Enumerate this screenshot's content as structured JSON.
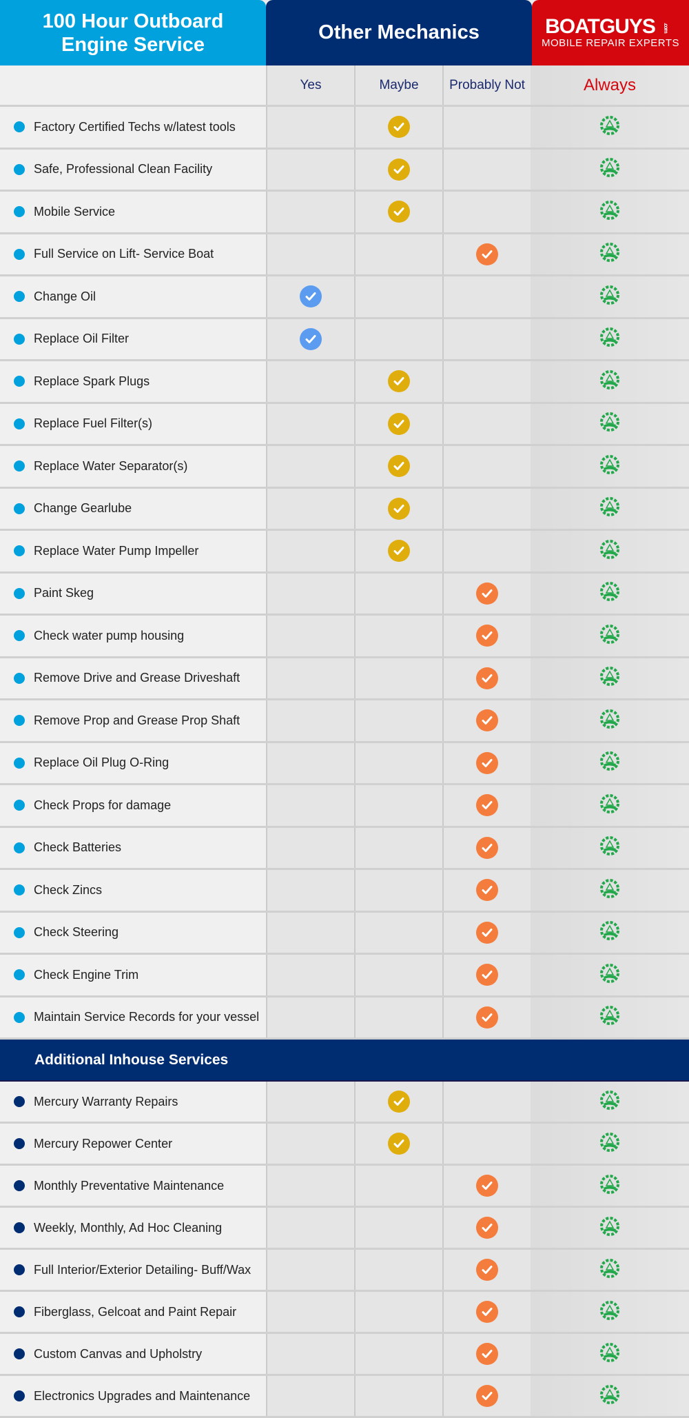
{
  "header": {
    "title": "100 Hour Outboard Engine Service",
    "title_line1": "100 Hour Outboard",
    "title_line2": "Engine Service",
    "other": "Other Mechanics",
    "brand": "BOATGUYS",
    "brand_suffix": ".com",
    "brand_tagline": "MOBILE REPAIR EXPERTS"
  },
  "columns": {
    "yes": "Yes",
    "maybe": "Maybe",
    "not": "Probably Not",
    "always": "Always"
  },
  "colors": {
    "cyan": "#00a1dd",
    "navy": "#002d72",
    "red": "#d4070f",
    "yes": "#5b9cf0",
    "maybe": "#e0ae0c",
    "not": "#f47c3c",
    "always": "#22a84a"
  },
  "section1": [
    {
      "label": "Factory Certified Techs w/latest tools",
      "status": "maybe"
    },
    {
      "label": "Safe, Professional Clean Facility",
      "status": "maybe"
    },
    {
      "label": "Mobile Service",
      "status": "maybe"
    },
    {
      "label": "Full Service on Lift- Service Boat",
      "status": "not"
    },
    {
      "label": "Change Oil",
      "status": "yes"
    },
    {
      "label": "Replace Oil Filter",
      "status": "yes"
    },
    {
      "label": "Replace Spark Plugs",
      "status": "maybe"
    },
    {
      "label": "Replace Fuel Filter(s)",
      "status": "maybe"
    },
    {
      "label": "Replace Water Separator(s)",
      "status": "maybe"
    },
    {
      "label": "Change Gearlube",
      "status": "maybe"
    },
    {
      "label": "Replace Water Pump  Impeller",
      "status": "maybe"
    },
    {
      "label": "Paint Skeg",
      "status": "not"
    },
    {
      "label": "Check water pump housing",
      "status": "not"
    },
    {
      "label": "Remove Drive and Grease Driveshaft",
      "status": "not"
    },
    {
      "label": "Remove Prop and Grease Prop Shaft",
      "status": "not"
    },
    {
      "label": "Replace Oil Plug O-Ring",
      "status": "not"
    },
    {
      "label": "Check Props for damage",
      "status": "not"
    },
    {
      "label": "Check Batteries",
      "status": "not"
    },
    {
      "label": "Check Zincs",
      "status": "not"
    },
    {
      "label": "Check Steering",
      "status": "not"
    },
    {
      "label": "Check Engine Trim",
      "status": "not"
    },
    {
      "label": "Maintain Service Records for your vessel",
      "status": "not"
    }
  ],
  "section2_title": "Additional Inhouse Services",
  "section2": [
    {
      "label": "Mercury Warranty Repairs",
      "status": "maybe"
    },
    {
      "label": "Mercury Repower Center",
      "status": "maybe"
    },
    {
      "label": "Monthly Preventative Maintenance",
      "status": "not"
    },
    {
      "label": "Weekly, Monthly, Ad Hoc Cleaning",
      "status": "not"
    },
    {
      "label": "Full Interior/Exterior Detailing- Buff/Wax",
      "status": "not"
    },
    {
      "label": "Fiberglass, Gelcoat and Paint Repair",
      "status": "not"
    },
    {
      "label": "Custom Canvas and Upholstry",
      "status": "not"
    },
    {
      "label": "Electronics Upgrades and Maintenance",
      "status": "not"
    }
  ]
}
